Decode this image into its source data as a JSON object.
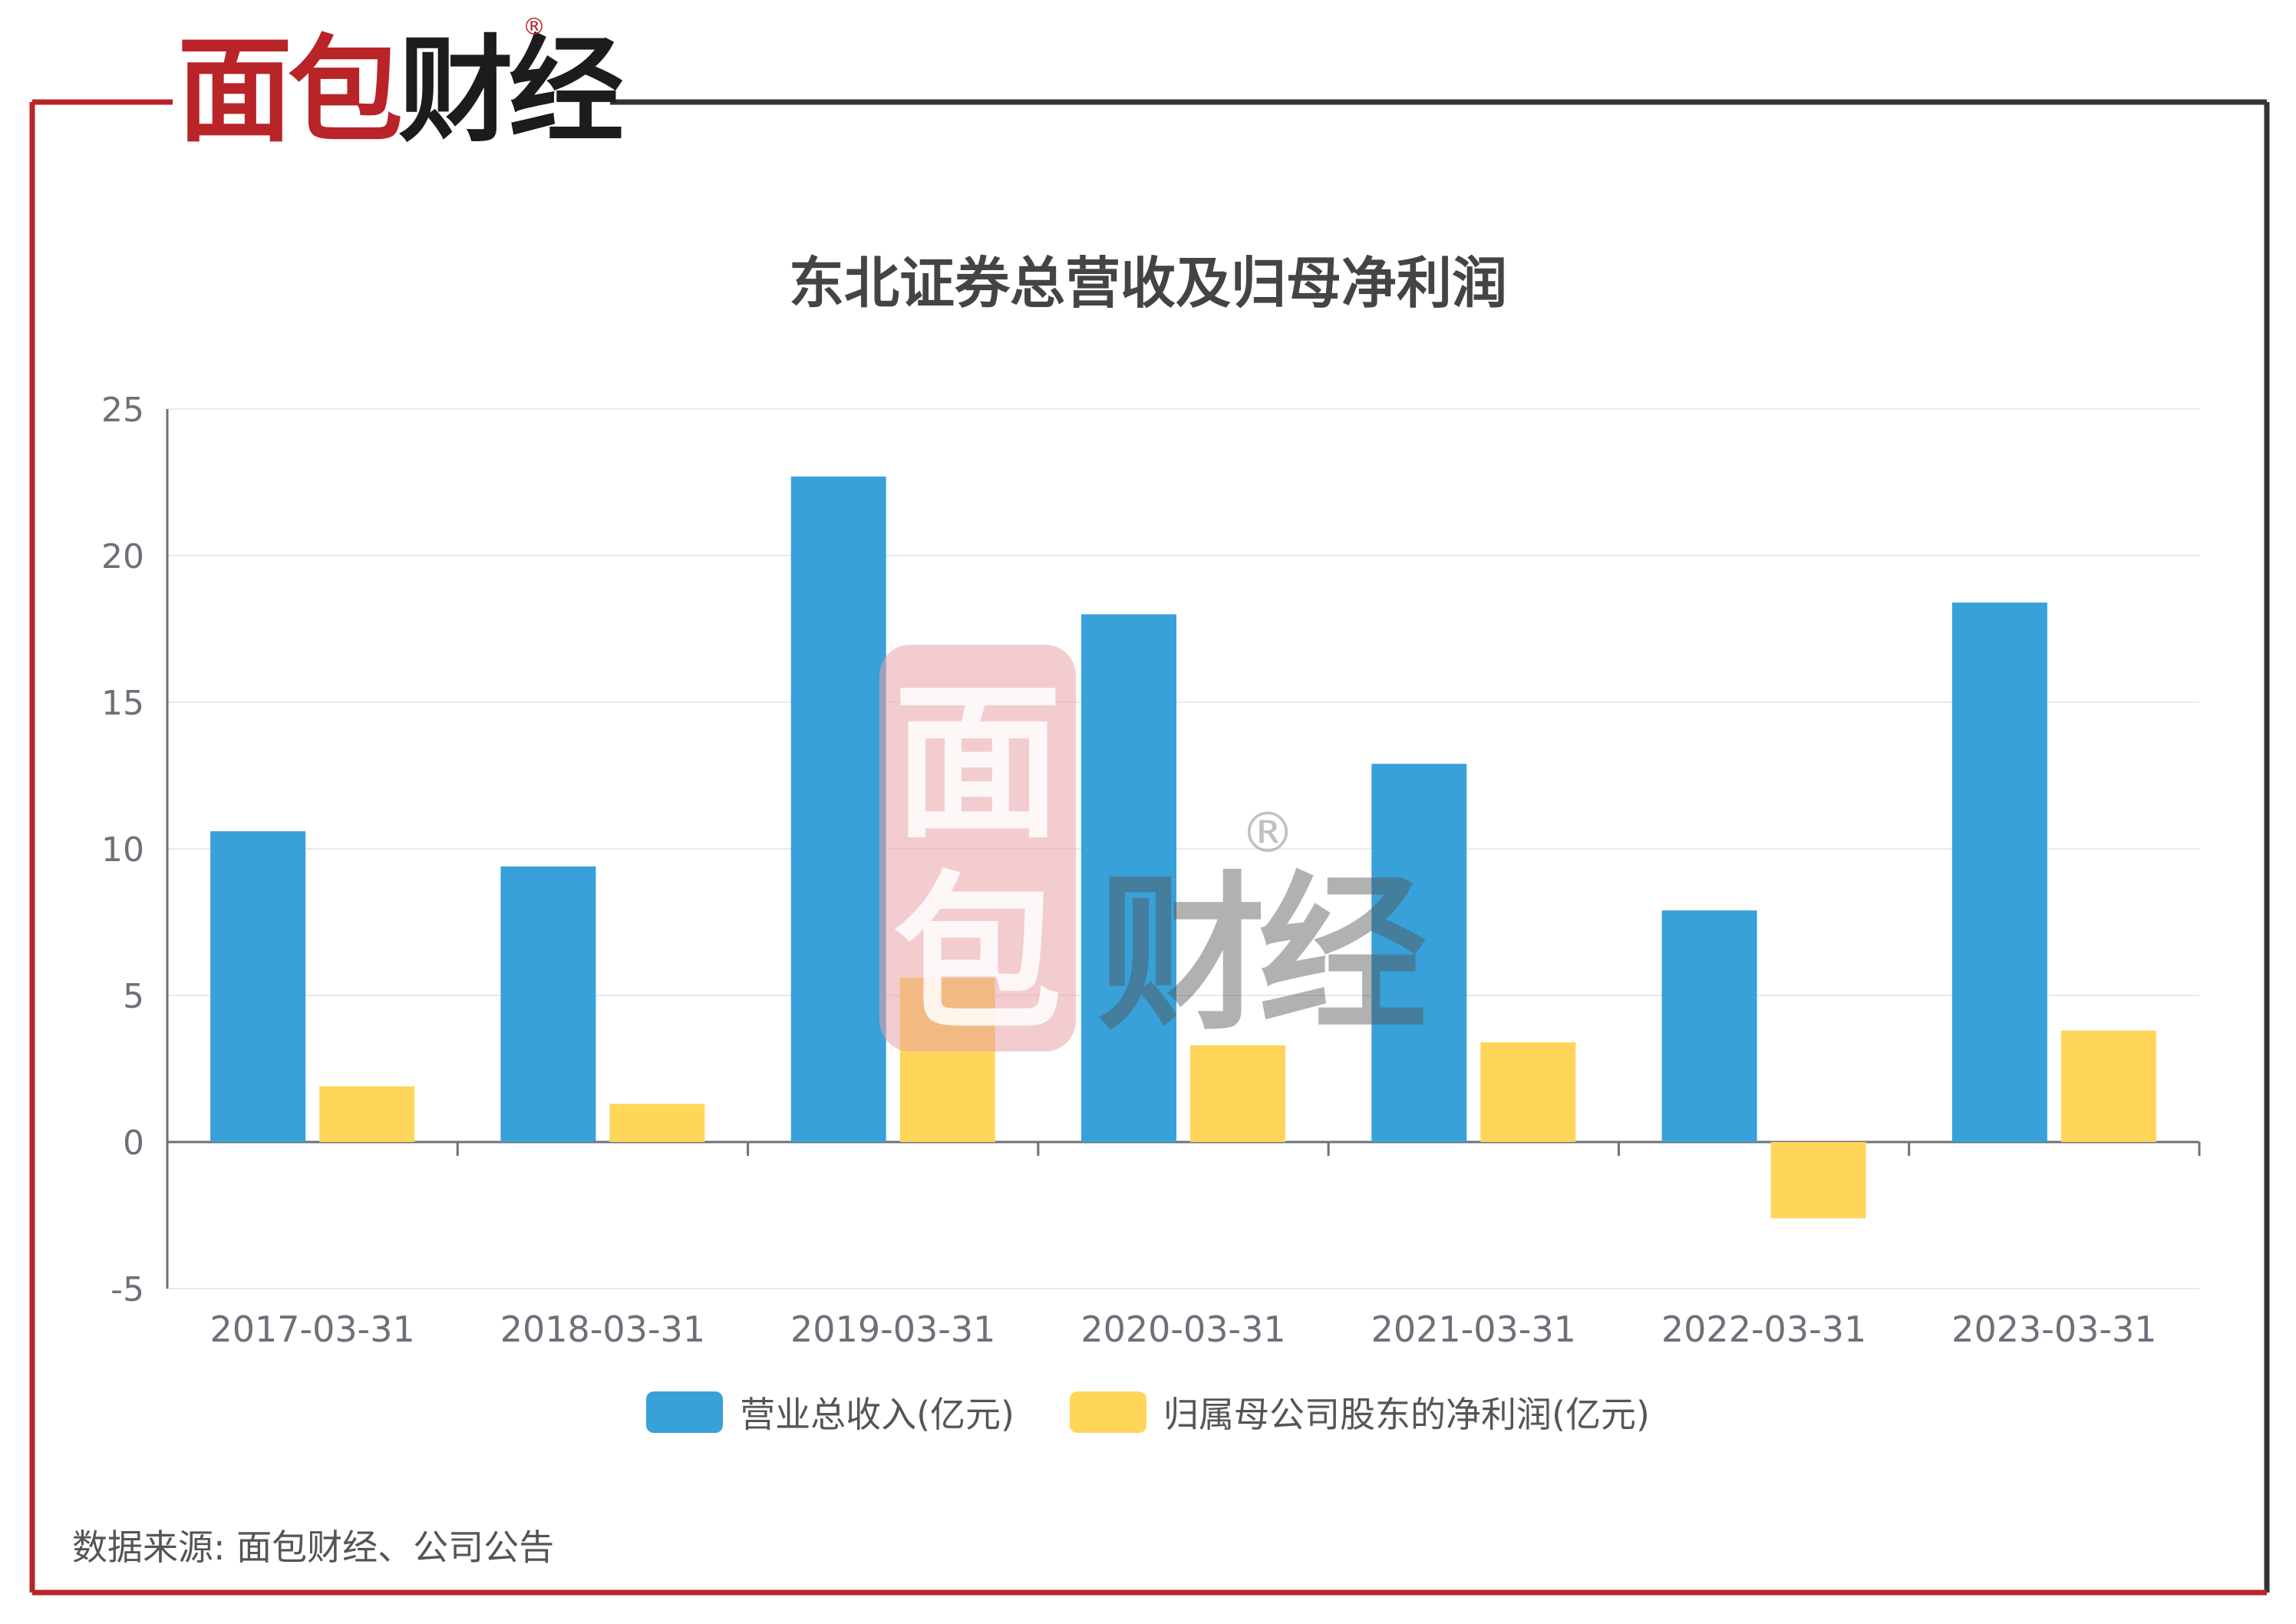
{
  "brand": {
    "logo_text": "面包财经",
    "registered_mark": "®",
    "watermark_text": "面包财经"
  },
  "colors": {
    "frame_left": "#b82428",
    "frame_right": "#333333",
    "revenue": "#38a1da",
    "profit": "#ffd659",
    "grid": "#e6e9f2",
    "axis": "#6e7079"
  },
  "source_note": "数据来源: 面包财经、公司公告",
  "chart_data": {
    "type": "bar",
    "title": "东北证券总营收及归母净利润",
    "categories": [
      "2017-03-31",
      "2018-03-31",
      "2019-03-31",
      "2020-03-31",
      "2021-03-31",
      "2022-03-31",
      "2023-03-31"
    ],
    "series": [
      {
        "name": "营业总收入(亿元)",
        "color": "#38a1da",
        "values": [
          10.6,
          9.4,
          22.7,
          18.0,
          12.9,
          7.9,
          18.4
        ]
      },
      {
        "name": "归属母公司股东的净利润(亿元)",
        "color": "#ffd659",
        "values": [
          1.9,
          1.3,
          5.6,
          3.3,
          3.4,
          -2.6,
          3.8
        ]
      }
    ],
    "ylim": [
      -5,
      25
    ],
    "yticks": [
      -5,
      0,
      5,
      10,
      15,
      20,
      25
    ],
    "grid": true,
    "legend": "bottom-center",
    "xlabel": "",
    "ylabel": ""
  }
}
